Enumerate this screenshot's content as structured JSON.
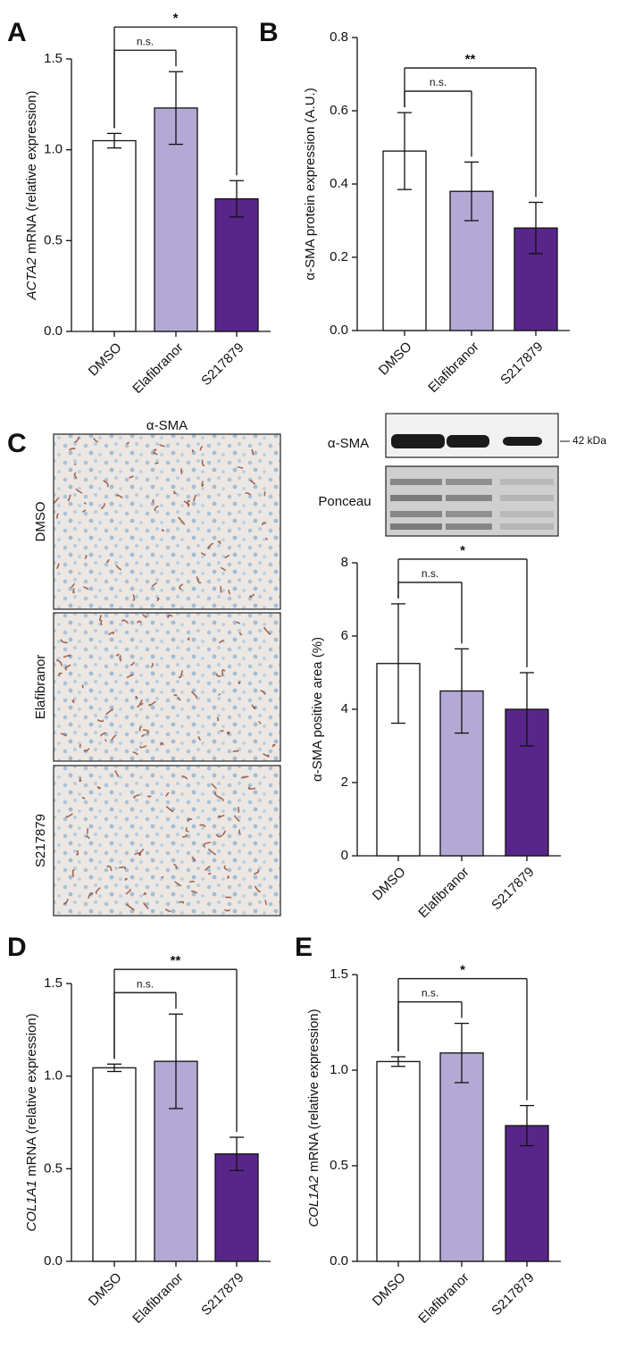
{
  "chart_data": [
    {
      "type": "bar",
      "panel": "A",
      "ylabel_gene": "ACTA2",
      "ylabel": " mRNA (relative expression)",
      "categories": [
        "DMSO",
        "Elafibranor",
        "S217879"
      ],
      "values": [
        1.05,
        1.23,
        0.73
      ],
      "errors": [
        0.04,
        0.2,
        0.1
      ],
      "colors": [
        "#ffffff",
        "#b3a9d4",
        "#58268a"
      ],
      "ylim": [
        0,
        1.5
      ],
      "yticks": [
        {
          "value": 0,
          "label": "0.0"
        },
        0.5,
        {
          "value": 1,
          "label": "1.0"
        },
        1.5
      ],
      "annotations": [
        "n.s.",
        "*"
      ]
    },
    {
      "type": "bar",
      "panel": "B",
      "ylabel": "α-SMA protein expression (A.U.)",
      "categories": [
        "DMSO",
        "Elafibranor",
        "S217879"
      ],
      "values": [
        0.49,
        0.38,
        0.28
      ],
      "errors": [
        0.105,
        0.08,
        0.07
      ],
      "colors": [
        "#ffffff",
        "#b3a9d4",
        "#58268a"
      ],
      "ylim": [
        0,
        0.8
      ],
      "yticks": [
        {
          "value": 0,
          "label": "0.0"
        },
        0.2,
        0.4,
        0.6,
        0.8
      ],
      "annotations": [
        "n.s.",
        "**"
      ]
    },
    {
      "type": "bar",
      "panel": "C",
      "ylabel": "α-SMA positive area (%)",
      "categories": [
        "DMSO",
        "Elafibranor",
        "S217879"
      ],
      "values": [
        5.25,
        4.5,
        4.0
      ],
      "errors": [
        1.63,
        1.15,
        1.0
      ],
      "colors": [
        "#ffffff",
        "#b3a9d4",
        "#58268a"
      ],
      "ylim": [
        0,
        8
      ],
      "yticks": [
        0,
        2,
        4,
        6,
        8
      ],
      "annotations": [
        "n.s.",
        "*"
      ]
    },
    {
      "type": "bar",
      "panel": "D",
      "ylabel_gene": "COL1A1",
      "ylabel": " mRNA (relative expression)",
      "categories": [
        "DMSO",
        "Elafibranor",
        "S217879"
      ],
      "values": [
        1.045,
        1.08,
        0.58
      ],
      "errors": [
        0.02,
        0.255,
        0.09
      ],
      "colors": [
        "#ffffff",
        "#b3a9d4",
        "#58268a"
      ],
      "ylim": [
        0,
        1.5
      ],
      "yticks": [
        {
          "value": 0,
          "label": "0.0"
        },
        0.5,
        {
          "value": 1,
          "label": "1.0"
        },
        1.5
      ],
      "annotations": [
        "n.s.",
        "**"
      ]
    },
    {
      "type": "bar",
      "panel": "E",
      "ylabel_gene": "COL1A2",
      "ylabel": " mRNA (relative expression)",
      "categories": [
        "DMSO",
        "Elafibranor",
        "S217879"
      ],
      "values": [
        1.045,
        1.09,
        0.71
      ],
      "errors": [
        0.025,
        0.155,
        0.105
      ],
      "colors": [
        "#ffffff",
        "#b3a9d4",
        "#58268a"
      ],
      "ylim": [
        0,
        1.5
      ],
      "yticks": [
        {
          "value": 0,
          "label": "0.0"
        },
        0.5,
        {
          "value": 1,
          "label": "1.0"
        },
        1.5
      ],
      "annotations": [
        "n.s.",
        "*"
      ]
    }
  ],
  "micrograph": {
    "title": "α-SMA",
    "rows": [
      "DMSO",
      "Elafibranor",
      "S217879"
    ]
  },
  "blot": {
    "rows": [
      "α-SMA",
      "Ponceau"
    ],
    "size": "42 kDa"
  }
}
